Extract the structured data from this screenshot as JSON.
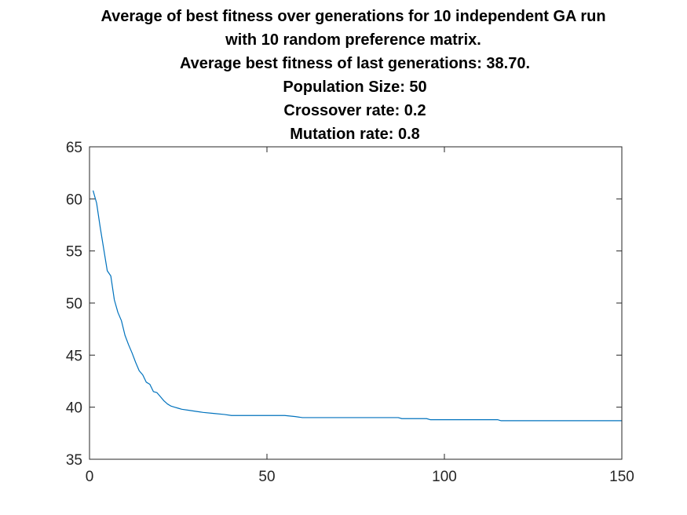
{
  "chart_data": {
    "type": "line",
    "title_lines": [
      "Average of best fitness over generations for 10 independent GA run",
      "with 10 random preference matrix.",
      "Average best fitness of last generations: 38.70.",
      "Population Size: 50",
      "Crossover rate: 0.2",
      "Mutation rate: 0.8"
    ],
    "xlabel": "",
    "ylabel": "",
    "xlim": [
      0,
      150
    ],
    "ylim": [
      35,
      65
    ],
    "xticks": [
      0,
      50,
      100,
      150
    ],
    "yticks": [
      35,
      40,
      45,
      50,
      55,
      60,
      65
    ],
    "grid": false,
    "legend": "none",
    "series": [
      {
        "color": "#0072BD",
        "x": [
          1,
          2,
          3,
          4,
          5,
          6,
          7,
          8,
          9,
          10,
          11,
          12,
          13,
          14,
          15,
          16,
          17,
          18,
          19,
          20,
          21,
          22,
          23,
          24,
          25,
          26,
          28,
          30,
          32,
          35,
          38,
          40,
          45,
          50,
          55,
          58,
          60,
          70,
          80,
          87,
          88,
          95,
          96,
          105,
          115,
          116,
          125,
          135,
          150
        ],
        "y": [
          60.8,
          59.6,
          57.3,
          55.2,
          53.1,
          52.6,
          50.3,
          49.1,
          48.3,
          46.9,
          46.0,
          45.2,
          44.3,
          43.5,
          43.1,
          42.4,
          42.2,
          41.5,
          41.4,
          41.0,
          40.6,
          40.3,
          40.1,
          40.0,
          39.9,
          39.8,
          39.7,
          39.6,
          39.5,
          39.4,
          39.3,
          39.2,
          39.2,
          39.2,
          39.2,
          39.1,
          39.0,
          39.0,
          39.0,
          39.0,
          38.9,
          38.9,
          38.8,
          38.8,
          38.8,
          38.7,
          38.7,
          38.7,
          38.7
        ]
      }
    ]
  }
}
